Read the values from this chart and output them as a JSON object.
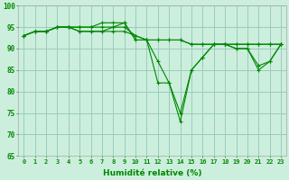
{
  "xlabel": "Humidité relative (%)",
  "ylabel": "",
  "background_color": "#cceedd",
  "grid_color": "#99ccbb",
  "line_color": "#008800",
  "xlim": [
    -0.5,
    23.5
  ],
  "ylim": [
    65,
    100
  ],
  "yticks": [
    65,
    70,
    75,
    80,
    85,
    90,
    95,
    100
  ],
  "xticks": [
    0,
    1,
    2,
    3,
    4,
    5,
    6,
    7,
    8,
    9,
    10,
    11,
    12,
    13,
    14,
    15,
    16,
    17,
    18,
    19,
    20,
    21,
    22,
    23
  ],
  "series": [
    [
      93,
      94,
      94,
      95,
      95,
      95,
      95,
      95,
      95,
      96,
      92,
      92,
      87,
      82,
      75,
      85,
      88,
      91,
      91,
      90,
      90,
      86,
      87,
      91
    ],
    [
      93,
      94,
      94,
      95,
      95,
      95,
      95,
      96,
      96,
      96,
      92,
      92,
      82,
      82,
      73,
      85,
      88,
      91,
      91,
      90,
      90,
      85,
      87,
      91
    ],
    [
      93,
      94,
      94,
      95,
      95,
      94,
      94,
      94,
      95,
      95,
      93,
      92,
      92,
      92,
      92,
      91,
      91,
      91,
      91,
      91,
      91,
      91,
      91,
      91
    ],
    [
      93,
      94,
      94,
      95,
      95,
      94,
      94,
      94,
      94,
      94,
      93,
      92,
      92,
      92,
      92,
      91,
      91,
      91,
      91,
      91,
      91,
      91,
      91,
      91
    ]
  ]
}
